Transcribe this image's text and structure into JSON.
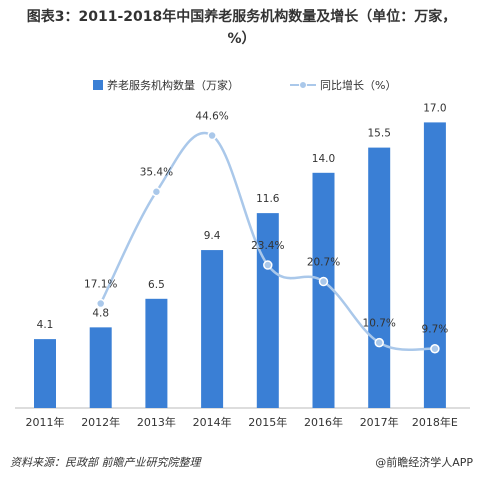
{
  "chart_data": {
    "type": "bar-line",
    "title": "图表3：2011-2018年中国养老服务机构数量及增长（单位：万家，%）",
    "categories": [
      "2011年",
      "2012年",
      "2013年",
      "2014年",
      "2015年",
      "2016年",
      "2017年",
      "2018年E"
    ],
    "series": [
      {
        "name": "养老服务机构数量（万家）",
        "type": "bar",
        "color": "#3a7fd5",
        "values": [
          4.1,
          4.8,
          6.5,
          9.4,
          11.6,
          14.0,
          15.5,
          17.0
        ],
        "value_labels": [
          "4.1",
          "4.8",
          "6.5",
          "9.4",
          "11.6",
          "14.0",
          "15.5",
          "17.0"
        ]
      },
      {
        "name": "同比增长（%）",
        "type": "line",
        "axis": "y2",
        "color": "#aac8ea",
        "values": [
          null,
          17.1,
          35.4,
          44.6,
          23.4,
          20.7,
          10.7,
          9.7
        ],
        "value_labels": [
          null,
          "17.1%",
          "35.4%",
          "44.6%",
          "23.4%",
          "20.7%",
          "10.7%",
          "9.7%"
        ]
      }
    ],
    "ylim": [
      0,
      20
    ],
    "y2lim": [
      0,
      55
    ],
    "source": "资料来源：民政部  前瞻产业研究院整理",
    "credit": "@前瞻经济学人APP"
  }
}
